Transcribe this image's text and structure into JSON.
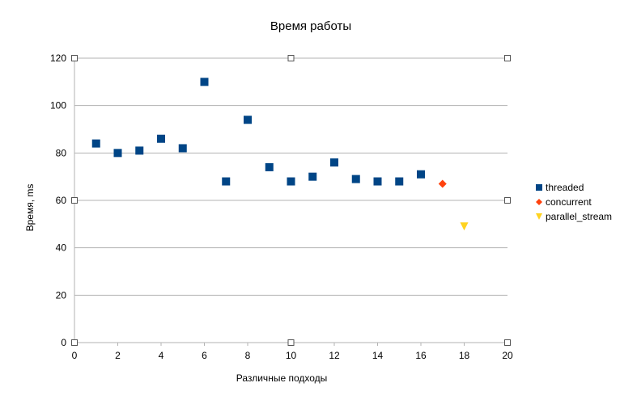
{
  "colors": {
    "background": "#ffffff",
    "grid": "#b3b3b3",
    "axis": "#b3b3b3",
    "handle_border": "#555555",
    "text": "#000000"
  },
  "chart_data": {
    "type": "scatter",
    "title": "Время работы",
    "xlabel": "Различные подходы",
    "ylabel": "Время, ms",
    "xlim": [
      0,
      20
    ],
    "ylim": [
      0,
      120
    ],
    "xticks": [
      0,
      2,
      4,
      6,
      8,
      10,
      12,
      14,
      16,
      18,
      20
    ],
    "yticks": [
      0,
      20,
      40,
      60,
      80,
      100,
      120
    ],
    "grid": "horizontal",
    "legend_position": "right",
    "series": [
      {
        "name": "threaded",
        "marker": "square",
        "color": "#004586",
        "points": [
          {
            "x": 1,
            "y": 84
          },
          {
            "x": 2,
            "y": 80
          },
          {
            "x": 3,
            "y": 81
          },
          {
            "x": 4,
            "y": 86
          },
          {
            "x": 5,
            "y": 82
          },
          {
            "x": 6,
            "y": 110
          },
          {
            "x": 7,
            "y": 68
          },
          {
            "x": 8,
            "y": 94
          },
          {
            "x": 9,
            "y": 74
          },
          {
            "x": 10,
            "y": 68
          },
          {
            "x": 11,
            "y": 70
          },
          {
            "x": 12,
            "y": 76
          },
          {
            "x": 13,
            "y": 69
          },
          {
            "x": 14,
            "y": 68
          },
          {
            "x": 15,
            "y": 68
          },
          {
            "x": 16,
            "y": 71
          }
        ]
      },
      {
        "name": "concurrent",
        "marker": "diamond",
        "color": "#ff420e",
        "points": [
          {
            "x": 17,
            "y": 67
          }
        ]
      },
      {
        "name": "parallel_stream",
        "marker": "triangle-down",
        "color": "#ffd320",
        "points": [
          {
            "x": 18,
            "y": 49
          }
        ]
      }
    ]
  }
}
